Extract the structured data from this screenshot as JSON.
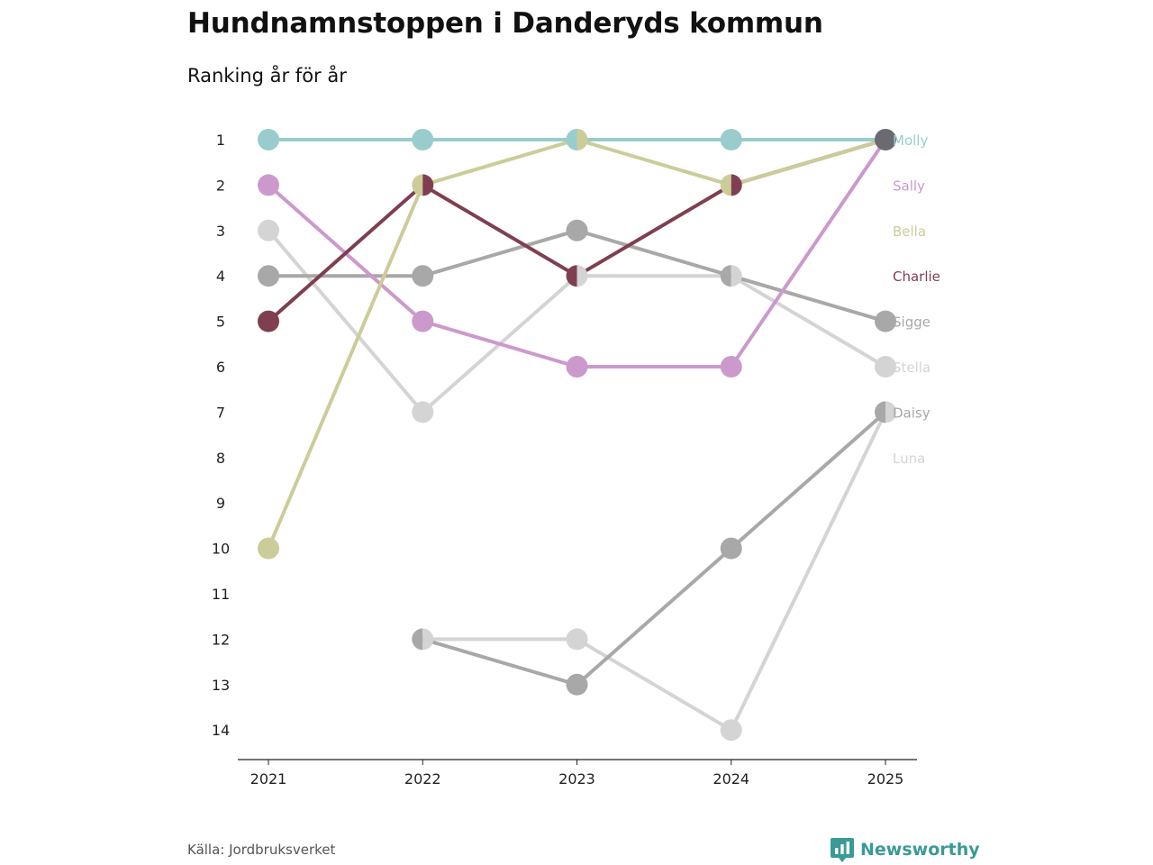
{
  "chart_data": {
    "type": "line",
    "title": "Hundnamnstoppen i Danderyds kommun",
    "subtitle": "Ranking år för år",
    "x": [
      "2021",
      "2022",
      "2023",
      "2024",
      "2025"
    ],
    "y_ticks": [
      "1",
      "2",
      "3",
      "4",
      "5",
      "6",
      "7",
      "8",
      "9",
      "10",
      "11",
      "12",
      "13",
      "14"
    ],
    "ylim": [
      1,
      14
    ],
    "y_inverted": true,
    "xlabel": "",
    "ylabel": "",
    "grid": false,
    "series": [
      {
        "name": "Luna",
        "color": "#d4d4d4",
        "values": [
          null,
          12,
          12,
          14,
          7
        ]
      },
      {
        "name": "Daisy",
        "color": "#a8a8a8",
        "values": [
          null,
          12,
          13,
          10,
          7
        ]
      },
      {
        "name": "Stella",
        "color": "#d4d4d4",
        "values": [
          3,
          7,
          4,
          4,
          6
        ]
      },
      {
        "name": "Sigge",
        "color": "#a8a8a8",
        "values": [
          4,
          4,
          3,
          4,
          5
        ]
      },
      {
        "name": "Sally",
        "color": "#cc99cc",
        "values": [
          2,
          5,
          6,
          6,
          1
        ]
      },
      {
        "name": "Charlie",
        "color": "#7f3f50",
        "values": [
          5,
          2,
          4,
          2,
          1
        ]
      },
      {
        "name": "Bella",
        "color": "#cccc99",
        "values": [
          10,
          2,
          1,
          2,
          1
        ]
      },
      {
        "name": "Molly",
        "color": "#99cccc",
        "values": [
          1,
          1,
          1,
          1,
          1
        ]
      }
    ],
    "label_order": [
      "Molly",
      "Sally",
      "Bella",
      "Charlie",
      "Sigge",
      "Stella",
      "Daisy",
      "Luna"
    ],
    "final_point_overlap_color": "#6a6a72"
  },
  "footer": {
    "source": "Källa: Jordbruksverket",
    "brand": "Newsworthy"
  },
  "colors": {
    "brand": "#3a9a96",
    "axis": "#222222"
  }
}
